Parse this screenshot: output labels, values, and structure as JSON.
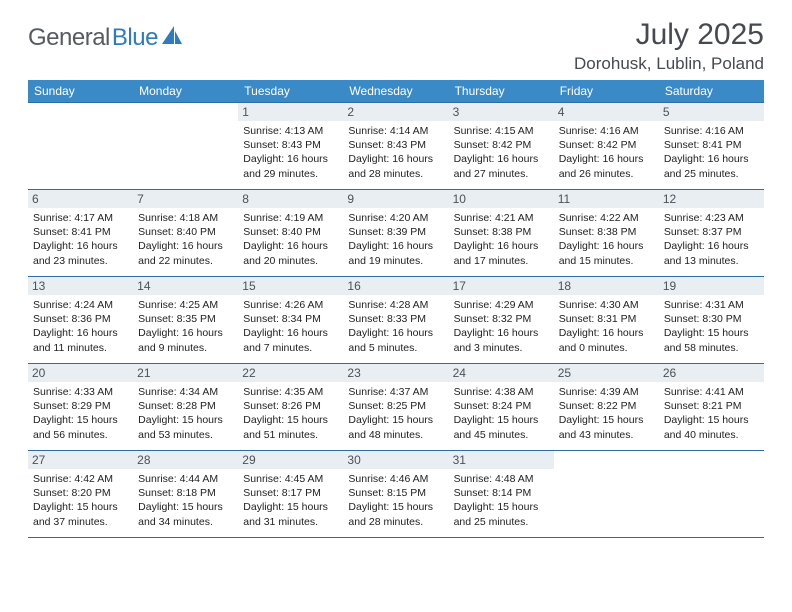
{
  "brand": {
    "name_part1": "General",
    "name_part2": "Blue"
  },
  "title": "July 2025",
  "location": "Dorohusk, Lublin, Poland",
  "colors": {
    "header_bg": "#3a8ac8",
    "row_border": "#2f6ca3",
    "daynum_bg": "#e9eef2",
    "text_dark": "#454a50",
    "logo_gray": "#555b61",
    "logo_blue": "#2f7bbf"
  },
  "dow": [
    "Sunday",
    "Monday",
    "Tuesday",
    "Wednesday",
    "Thursday",
    "Friday",
    "Saturday"
  ],
  "weeks": [
    [
      {
        "n": "",
        "sr": "",
        "ss": "",
        "dl": ""
      },
      {
        "n": "",
        "sr": "",
        "ss": "",
        "dl": ""
      },
      {
        "n": "1",
        "sr": "Sunrise: 4:13 AM",
        "ss": "Sunset: 8:43 PM",
        "dl": "Daylight: 16 hours and 29 minutes."
      },
      {
        "n": "2",
        "sr": "Sunrise: 4:14 AM",
        "ss": "Sunset: 8:43 PM",
        "dl": "Daylight: 16 hours and 28 minutes."
      },
      {
        "n": "3",
        "sr": "Sunrise: 4:15 AM",
        "ss": "Sunset: 8:42 PM",
        "dl": "Daylight: 16 hours and 27 minutes."
      },
      {
        "n": "4",
        "sr": "Sunrise: 4:16 AM",
        "ss": "Sunset: 8:42 PM",
        "dl": "Daylight: 16 hours and 26 minutes."
      },
      {
        "n": "5",
        "sr": "Sunrise: 4:16 AM",
        "ss": "Sunset: 8:41 PM",
        "dl": "Daylight: 16 hours and 25 minutes."
      }
    ],
    [
      {
        "n": "6",
        "sr": "Sunrise: 4:17 AM",
        "ss": "Sunset: 8:41 PM",
        "dl": "Daylight: 16 hours and 23 minutes."
      },
      {
        "n": "7",
        "sr": "Sunrise: 4:18 AM",
        "ss": "Sunset: 8:40 PM",
        "dl": "Daylight: 16 hours and 22 minutes."
      },
      {
        "n": "8",
        "sr": "Sunrise: 4:19 AM",
        "ss": "Sunset: 8:40 PM",
        "dl": "Daylight: 16 hours and 20 minutes."
      },
      {
        "n": "9",
        "sr": "Sunrise: 4:20 AM",
        "ss": "Sunset: 8:39 PM",
        "dl": "Daylight: 16 hours and 19 minutes."
      },
      {
        "n": "10",
        "sr": "Sunrise: 4:21 AM",
        "ss": "Sunset: 8:38 PM",
        "dl": "Daylight: 16 hours and 17 minutes."
      },
      {
        "n": "11",
        "sr": "Sunrise: 4:22 AM",
        "ss": "Sunset: 8:38 PM",
        "dl": "Daylight: 16 hours and 15 minutes."
      },
      {
        "n": "12",
        "sr": "Sunrise: 4:23 AM",
        "ss": "Sunset: 8:37 PM",
        "dl": "Daylight: 16 hours and 13 minutes."
      }
    ],
    [
      {
        "n": "13",
        "sr": "Sunrise: 4:24 AM",
        "ss": "Sunset: 8:36 PM",
        "dl": "Daylight: 16 hours and 11 minutes."
      },
      {
        "n": "14",
        "sr": "Sunrise: 4:25 AM",
        "ss": "Sunset: 8:35 PM",
        "dl": "Daylight: 16 hours and 9 minutes."
      },
      {
        "n": "15",
        "sr": "Sunrise: 4:26 AM",
        "ss": "Sunset: 8:34 PM",
        "dl": "Daylight: 16 hours and 7 minutes."
      },
      {
        "n": "16",
        "sr": "Sunrise: 4:28 AM",
        "ss": "Sunset: 8:33 PM",
        "dl": "Daylight: 16 hours and 5 minutes."
      },
      {
        "n": "17",
        "sr": "Sunrise: 4:29 AM",
        "ss": "Sunset: 8:32 PM",
        "dl": "Daylight: 16 hours and 3 minutes."
      },
      {
        "n": "18",
        "sr": "Sunrise: 4:30 AM",
        "ss": "Sunset: 8:31 PM",
        "dl": "Daylight: 16 hours and 0 minutes."
      },
      {
        "n": "19",
        "sr": "Sunrise: 4:31 AM",
        "ss": "Sunset: 8:30 PM",
        "dl": "Daylight: 15 hours and 58 minutes."
      }
    ],
    [
      {
        "n": "20",
        "sr": "Sunrise: 4:33 AM",
        "ss": "Sunset: 8:29 PM",
        "dl": "Daylight: 15 hours and 56 minutes."
      },
      {
        "n": "21",
        "sr": "Sunrise: 4:34 AM",
        "ss": "Sunset: 8:28 PM",
        "dl": "Daylight: 15 hours and 53 minutes."
      },
      {
        "n": "22",
        "sr": "Sunrise: 4:35 AM",
        "ss": "Sunset: 8:26 PM",
        "dl": "Daylight: 15 hours and 51 minutes."
      },
      {
        "n": "23",
        "sr": "Sunrise: 4:37 AM",
        "ss": "Sunset: 8:25 PM",
        "dl": "Daylight: 15 hours and 48 minutes."
      },
      {
        "n": "24",
        "sr": "Sunrise: 4:38 AM",
        "ss": "Sunset: 8:24 PM",
        "dl": "Daylight: 15 hours and 45 minutes."
      },
      {
        "n": "25",
        "sr": "Sunrise: 4:39 AM",
        "ss": "Sunset: 8:22 PM",
        "dl": "Daylight: 15 hours and 43 minutes."
      },
      {
        "n": "26",
        "sr": "Sunrise: 4:41 AM",
        "ss": "Sunset: 8:21 PM",
        "dl": "Daylight: 15 hours and 40 minutes."
      }
    ],
    [
      {
        "n": "27",
        "sr": "Sunrise: 4:42 AM",
        "ss": "Sunset: 8:20 PM",
        "dl": "Daylight: 15 hours and 37 minutes."
      },
      {
        "n": "28",
        "sr": "Sunrise: 4:44 AM",
        "ss": "Sunset: 8:18 PM",
        "dl": "Daylight: 15 hours and 34 minutes."
      },
      {
        "n": "29",
        "sr": "Sunrise: 4:45 AM",
        "ss": "Sunset: 8:17 PM",
        "dl": "Daylight: 15 hours and 31 minutes."
      },
      {
        "n": "30",
        "sr": "Sunrise: 4:46 AM",
        "ss": "Sunset: 8:15 PM",
        "dl": "Daylight: 15 hours and 28 minutes."
      },
      {
        "n": "31",
        "sr": "Sunrise: 4:48 AM",
        "ss": "Sunset: 8:14 PM",
        "dl": "Daylight: 15 hours and 25 minutes."
      },
      {
        "n": "",
        "sr": "",
        "ss": "",
        "dl": ""
      },
      {
        "n": "",
        "sr": "",
        "ss": "",
        "dl": ""
      }
    ]
  ]
}
